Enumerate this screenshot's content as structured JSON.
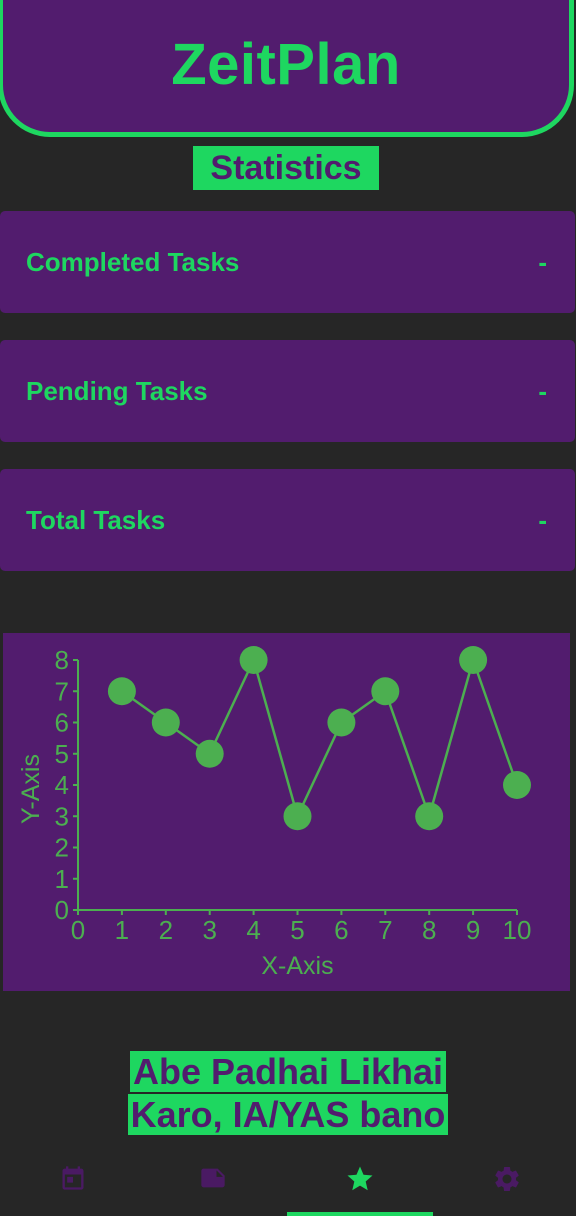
{
  "app": {
    "title": "ZeitPlan"
  },
  "page": {
    "heading": "Statistics"
  },
  "stats": [
    {
      "label": "Completed Tasks",
      "value": "-"
    },
    {
      "label": "Pending Tasks",
      "value": "-"
    },
    {
      "label": "Total Tasks",
      "value": "-"
    }
  ],
  "chart_data": {
    "type": "line",
    "x": [
      1,
      2,
      3,
      4,
      5,
      6,
      7,
      8,
      9,
      10
    ],
    "series": [
      {
        "values": [
          7,
          6,
          5,
          8,
          3,
          6,
          7,
          3,
          8,
          4
        ]
      }
    ],
    "xlabel": "X-Axis",
    "ylabel": "Y-Axis",
    "xlim": [
      0,
      10
    ],
    "ylim": [
      0,
      8
    ],
    "xticks": [
      0,
      1,
      2,
      3,
      4,
      5,
      6,
      7,
      8,
      9,
      10
    ],
    "yticks": [
      0,
      1,
      2,
      3,
      4,
      5,
      6,
      7,
      8
    ],
    "grid": false,
    "color": "#4caf50"
  },
  "motto": {
    "line1": "Abe Padhai Likhai",
    "line2": "Karo, IA/YAS bano"
  },
  "nav": {
    "items": [
      {
        "icon": "calendar-icon",
        "active": false
      },
      {
        "icon": "note-icon",
        "active": false
      },
      {
        "icon": "star-icon",
        "active": true
      },
      {
        "icon": "gear-icon",
        "active": false
      }
    ]
  },
  "colors": {
    "background": "#262626",
    "purple": "#521c6e",
    "accent_green": "#1ed760",
    "chart_green": "#4caf50",
    "nav_inactive": "#4a1a63"
  }
}
